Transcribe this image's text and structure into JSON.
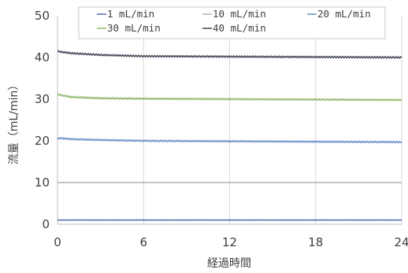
{
  "chart_data": {
    "type": "line",
    "xlabel": "経過時間",
    "ylabel": "流量（mL/min）",
    "xlim": [
      0,
      24
    ],
    "ylim": [
      0,
      50
    ],
    "x_ticks": [
      0,
      6,
      12,
      18,
      24
    ],
    "y_ticks": [
      0,
      10,
      20,
      30,
      40,
      50
    ],
    "grid": {
      "x": true,
      "y": false
    },
    "legend": {
      "position": "top-center",
      "columns": 3
    },
    "series": [
      {
        "name": "1 mL/min",
        "color": "#4a6ea9",
        "x": [
          0,
          24
        ],
        "y": [
          1.0,
          1.0
        ]
      },
      {
        "name": "10 mL/min",
        "color": "#b4b4b4",
        "x": [
          0,
          24
        ],
        "y": [
          10.0,
          10.0
        ]
      },
      {
        "name": "20 mL/min",
        "color": "#6b8fca",
        "x": [
          0,
          0.3,
          1,
          3,
          6,
          12,
          18,
          24
        ],
        "y": [
          20.6,
          20.6,
          20.4,
          20.2,
          20.0,
          19.9,
          19.8,
          19.7
        ]
      },
      {
        "name": "30 mL/min",
        "color": "#8fb86a",
        "x": [
          0,
          0.3,
          1,
          3,
          6,
          12,
          18,
          24
        ],
        "y": [
          31.2,
          30.9,
          30.5,
          30.2,
          30.1,
          30.0,
          29.9,
          29.8
        ]
      },
      {
        "name": "40 mL/min",
        "color": "#3f4654",
        "x": [
          0,
          0.3,
          1,
          3,
          6,
          12,
          18,
          24
        ],
        "y": [
          41.5,
          41.3,
          41.0,
          40.6,
          40.3,
          40.2,
          40.1,
          40.0
        ]
      }
    ]
  }
}
